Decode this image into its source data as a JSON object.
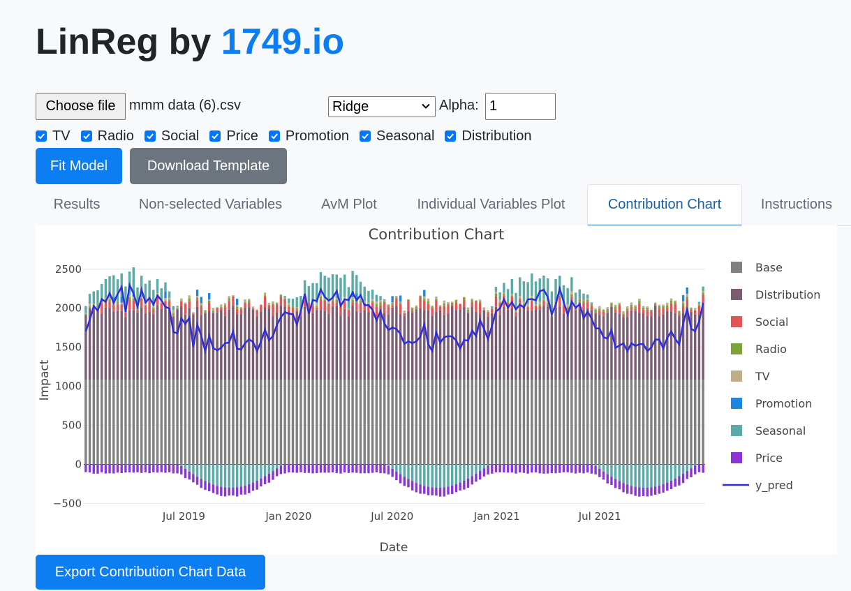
{
  "header": {
    "title_prefix": "LinReg by ",
    "title_brand": "1749.io"
  },
  "controls": {
    "file_button": "Choose file",
    "file_name": "mmm data (6).csv",
    "model_select": "Ridge",
    "alpha_label": "Alpha:",
    "alpha_value": "1"
  },
  "checkboxes": [
    {
      "label": "TV",
      "checked": true
    },
    {
      "label": "Radio",
      "checked": true
    },
    {
      "label": "Social",
      "checked": true
    },
    {
      "label": "Price",
      "checked": true
    },
    {
      "label": "Promotion",
      "checked": true
    },
    {
      "label": "Seasonal",
      "checked": true
    },
    {
      "label": "Distribution",
      "checked": true
    }
  ],
  "buttons": {
    "fit": "Fit Model",
    "template": "Download Template",
    "export": "Export Contribution Chart Data"
  },
  "tabs": [
    {
      "label": "Results",
      "active": false
    },
    {
      "label": "Non-selected Variables",
      "active": false
    },
    {
      "label": "AvM Plot",
      "active": false
    },
    {
      "label": "Individual Variables Plot",
      "active": false
    },
    {
      "label": "Contribution Chart",
      "active": true
    },
    {
      "label": "Instructions",
      "active": false
    }
  ],
  "colors": {
    "primary": "#0d7ef2",
    "secondary": "#6c757d",
    "Base": "#808080",
    "Distribution": "#7b5c73",
    "Social": "#e05555",
    "Radio": "#7ea33a",
    "TV": "#bfae8a",
    "Promotion": "#1f86e0",
    "Seasonal": "#5aaaa8",
    "Price": "#8b35d6",
    "y_pred": "#2d2de0"
  },
  "chart_data": {
    "type": "bar",
    "stacked": "relative",
    "title": "Contribution Chart",
    "xlabel": "Date",
    "ylabel": "Impact",
    "ylim": [
      -550,
      2650
    ],
    "yticks": [
      -500,
      0,
      500,
      1000,
      1500,
      2000,
      2500
    ],
    "ytick_labels": [
      "−500",
      "0",
      "500",
      "1000",
      "1500",
      "2000",
      "2500"
    ],
    "x_start": "2019-01-06",
    "x_frequency": "weekly",
    "n_weeks": 156,
    "xticks": [
      {
        "date": "2019-07-01",
        "label": "Jul 2019"
      },
      {
        "date": "2020-01-01",
        "label": "Jan 2020"
      },
      {
        "date": "2020-07-01",
        "label": "Jul 2020"
      },
      {
        "date": "2021-01-01",
        "label": "Jan 2021"
      },
      {
        "date": "2021-07-01",
        "label": "Jul 2021"
      }
    ],
    "legend_position": "right",
    "legend": [
      "Base",
      "Distribution",
      "Social",
      "Radio",
      "TV",
      "Promotion",
      "Seasonal",
      "Price",
      "y_pred"
    ],
    "series_summary": {
      "Base": 1085,
      "Distribution": [
        800,
        950
      ],
      "Social": [
        0,
        150
      ],
      "Radio": [
        0,
        40
      ],
      "TV": [
        0,
        40
      ],
      "Promotion": [
        0,
        100
      ],
      "Seasonal": [
        -300,
        300
      ],
      "Price": [
        -120,
        -100
      ],
      "y_pred": [
        1450,
        2400
      ]
    }
  }
}
